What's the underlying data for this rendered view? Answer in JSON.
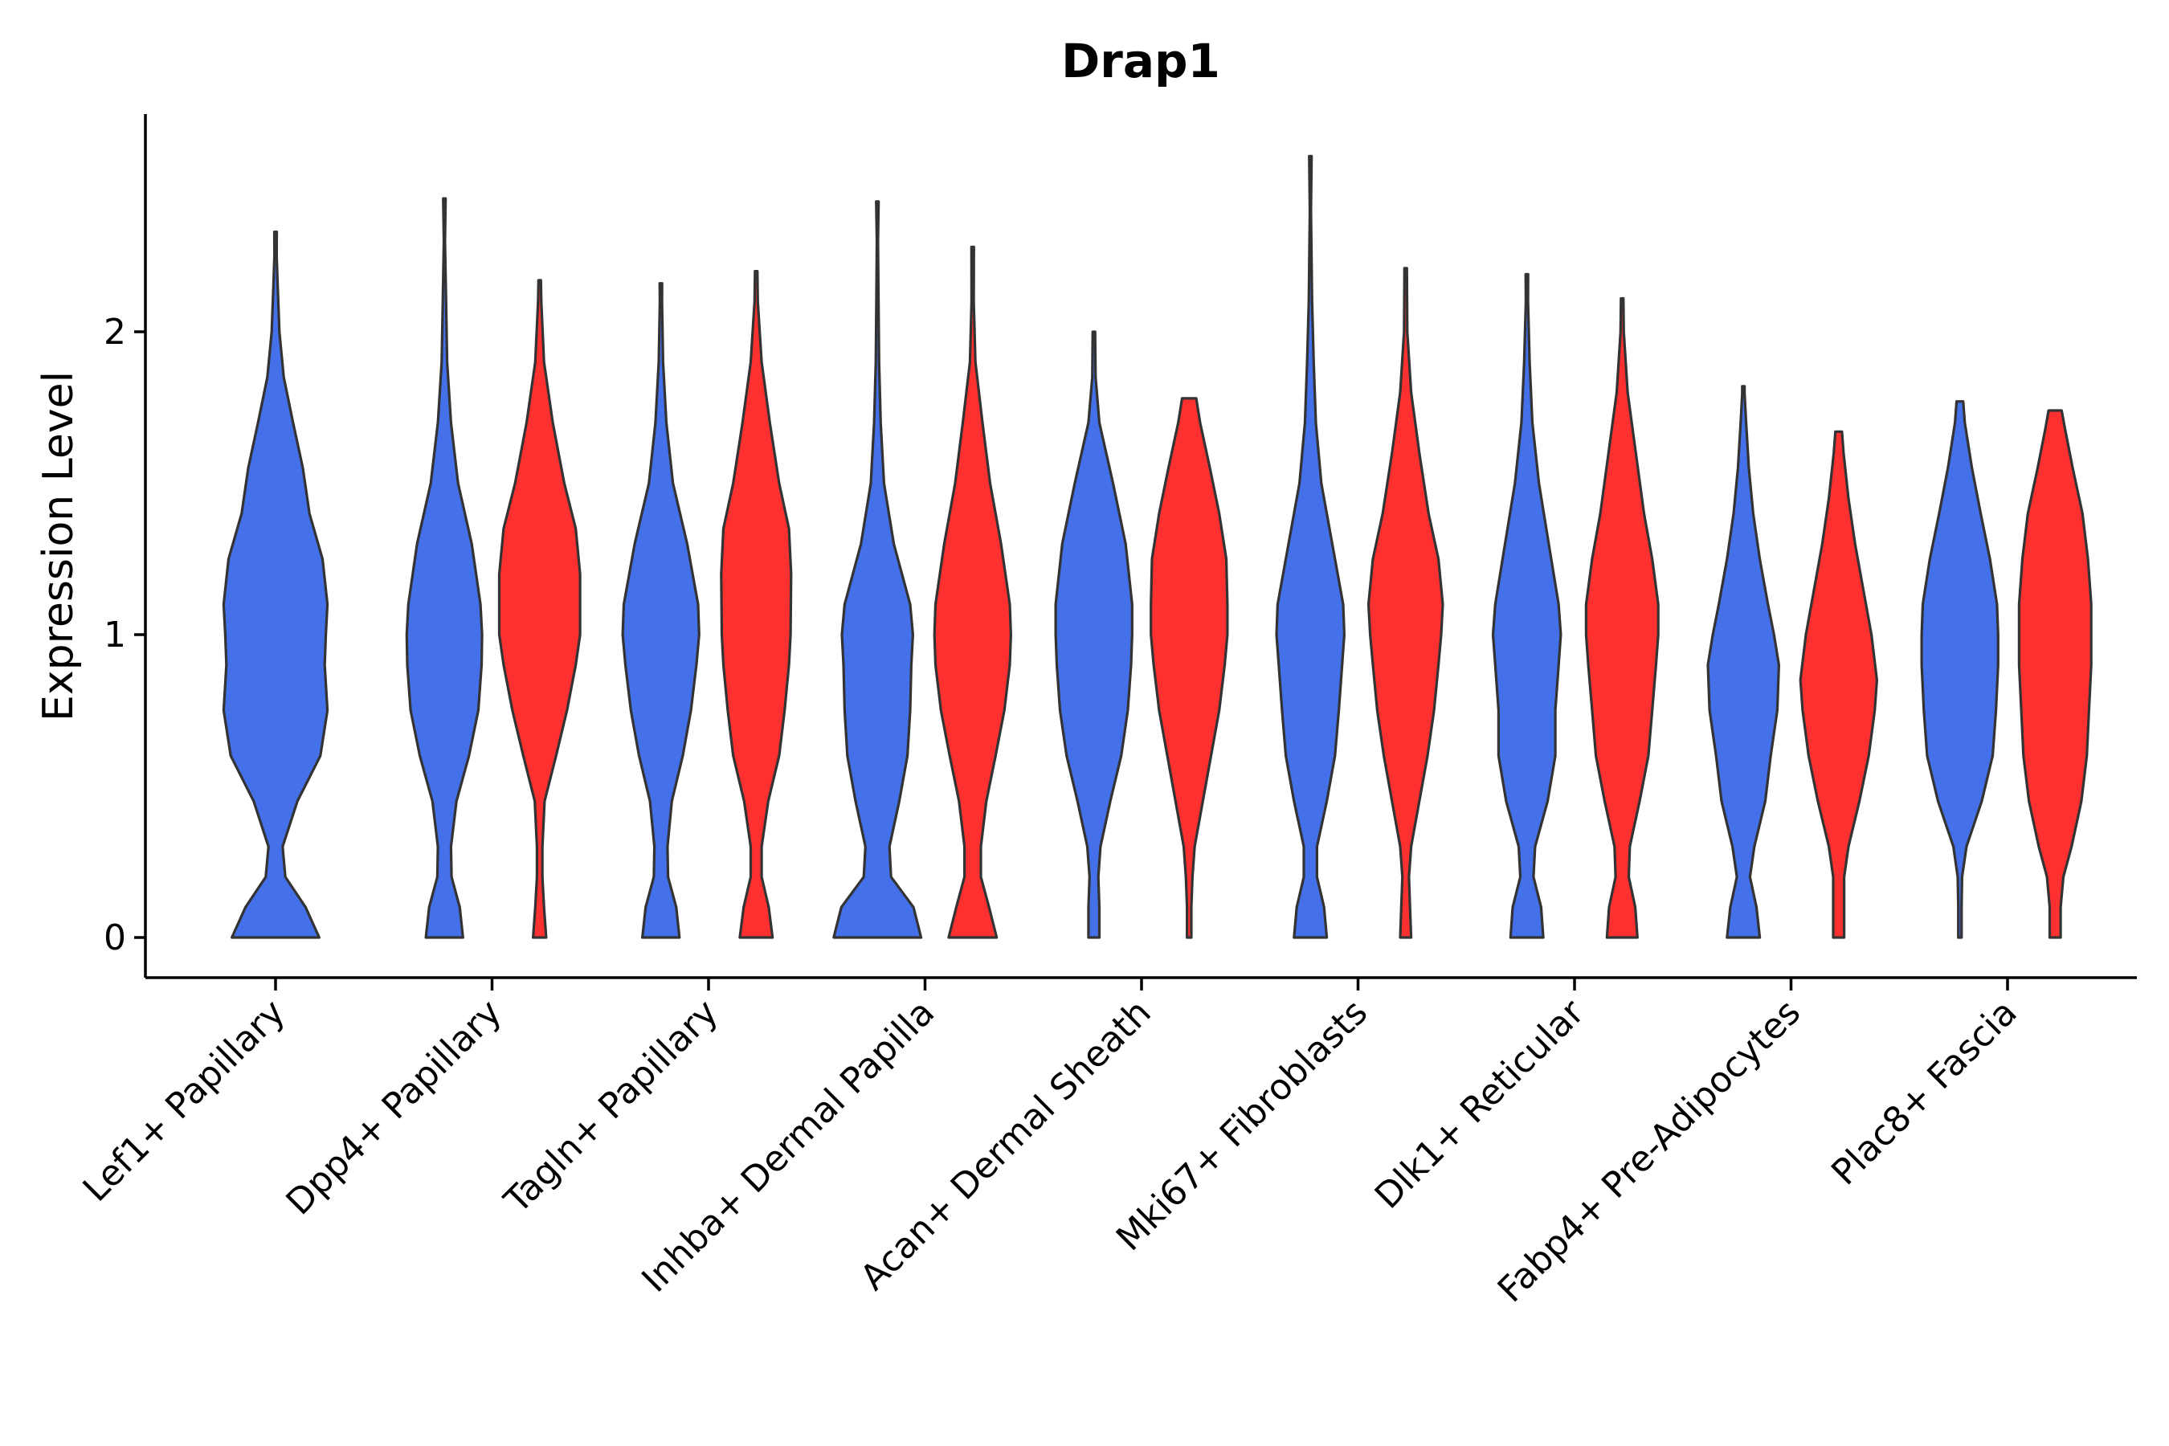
{
  "chart_data": {
    "type": "violin",
    "title": "Drap1",
    "xlabel": "",
    "ylabel": "Expression Level",
    "ylim": [
      -0.13,
      2.7
    ],
    "yticks": [
      0,
      1,
      2
    ],
    "grid": false,
    "legend": "none",
    "colors": {
      "group1": "#4470EA",
      "group2": "#FF3030",
      "outline": "#333333"
    },
    "categories": [
      "Lef1+ Papillary",
      "Dpp4+ Papillary",
      "Tagln+ Papillary",
      "Inhba+ Dermal Papilla",
      "Acan+ Dermal Sheath",
      "Mki67+ Fibroblasts",
      "Dlk1+ Reticular",
      "Fabp4+ Pre-Adipocytes",
      "Plac8+ Fascia"
    ],
    "violins": [
      {
        "group": 1,
        "x": 0,
        "max": 2.33,
        "profile": [
          [
            0,
            0.8
          ],
          [
            0.1,
            0.55
          ],
          [
            0.2,
            0.18
          ],
          [
            0.3,
            0.13
          ],
          [
            0.45,
            0.4
          ],
          [
            0.6,
            0.82
          ],
          [
            0.75,
            0.95
          ],
          [
            0.9,
            0.9
          ],
          [
            1.0,
            0.92
          ],
          [
            1.1,
            0.95
          ],
          [
            1.25,
            0.86
          ],
          [
            1.4,
            0.62
          ],
          [
            1.55,
            0.5
          ],
          [
            1.7,
            0.32
          ],
          [
            1.85,
            0.15
          ],
          [
            2.0,
            0.07
          ],
          [
            2.15,
            0.04
          ],
          [
            2.25,
            0.02
          ]
        ]
      },
      {
        "group": 1,
        "x": 0.78,
        "max": 2.44,
        "profile": [
          [
            0,
            0.34
          ],
          [
            0.1,
            0.28
          ],
          [
            0.2,
            0.13
          ],
          [
            0.3,
            0.12
          ],
          [
            0.45,
            0.22
          ],
          [
            0.6,
            0.45
          ],
          [
            0.75,
            0.62
          ],
          [
            0.9,
            0.68
          ],
          [
            1.0,
            0.69
          ],
          [
            1.1,
            0.66
          ],
          [
            1.3,
            0.5
          ],
          [
            1.5,
            0.25
          ],
          [
            1.7,
            0.12
          ],
          [
            1.9,
            0.05
          ],
          [
            2.1,
            0.03
          ],
          [
            2.3,
            0.01
          ]
        ]
      },
      {
        "group": 2,
        "x": 1.22,
        "max": 2.17,
        "profile": [
          [
            0,
            0.12
          ],
          [
            0.1,
            0.08
          ],
          [
            0.2,
            0.05
          ],
          [
            0.3,
            0.05
          ],
          [
            0.45,
            0.09
          ],
          [
            0.6,
            0.3
          ],
          [
            0.75,
            0.5
          ],
          [
            0.9,
            0.66
          ],
          [
            1.0,
            0.74
          ],
          [
            1.2,
            0.74
          ],
          [
            1.35,
            0.66
          ],
          [
            1.5,
            0.45
          ],
          [
            1.7,
            0.24
          ],
          [
            1.9,
            0.08
          ],
          [
            2.1,
            0.03
          ]
        ]
      },
      {
        "group": 1,
        "x": 1.78,
        "max": 2.16,
        "profile": [
          [
            0,
            0.34
          ],
          [
            0.1,
            0.28
          ],
          [
            0.2,
            0.13
          ],
          [
            0.3,
            0.12
          ],
          [
            0.45,
            0.2
          ],
          [
            0.6,
            0.4
          ],
          [
            0.75,
            0.55
          ],
          [
            0.9,
            0.65
          ],
          [
            1.0,
            0.7
          ],
          [
            1.1,
            0.68
          ],
          [
            1.3,
            0.48
          ],
          [
            1.5,
            0.22
          ],
          [
            1.7,
            0.1
          ],
          [
            1.9,
            0.04
          ],
          [
            2.1,
            0.02
          ]
        ]
      },
      {
        "group": 2,
        "x": 2.22,
        "max": 2.2,
        "profile": [
          [
            0,
            0.3
          ],
          [
            0.1,
            0.23
          ],
          [
            0.2,
            0.1
          ],
          [
            0.3,
            0.1
          ],
          [
            0.45,
            0.22
          ],
          [
            0.6,
            0.42
          ],
          [
            0.75,
            0.52
          ],
          [
            0.9,
            0.6
          ],
          [
            1.0,
            0.63
          ],
          [
            1.2,
            0.64
          ],
          [
            1.35,
            0.6
          ],
          [
            1.5,
            0.42
          ],
          [
            1.7,
            0.25
          ],
          [
            1.9,
            0.1
          ],
          [
            2.1,
            0.03
          ]
        ]
      },
      {
        "group": 1,
        "x": 2.78,
        "max": 2.43,
        "profile": [
          [
            0,
            0.8
          ],
          [
            0.1,
            0.66
          ],
          [
            0.2,
            0.25
          ],
          [
            0.3,
            0.22
          ],
          [
            0.45,
            0.4
          ],
          [
            0.6,
            0.55
          ],
          [
            0.75,
            0.6
          ],
          [
            0.9,
            0.62
          ],
          [
            1.0,
            0.65
          ],
          [
            1.1,
            0.6
          ],
          [
            1.3,
            0.3
          ],
          [
            1.5,
            0.12
          ],
          [
            1.7,
            0.06
          ],
          [
            1.9,
            0.03
          ],
          [
            2.1,
            0.02
          ],
          [
            2.3,
            0.01
          ]
        ]
      },
      {
        "group": 2,
        "x": 3.22,
        "max": 2.28,
        "profile": [
          [
            0,
            0.44
          ],
          [
            0.1,
            0.3
          ],
          [
            0.2,
            0.15
          ],
          [
            0.3,
            0.15
          ],
          [
            0.45,
            0.25
          ],
          [
            0.6,
            0.42
          ],
          [
            0.75,
            0.58
          ],
          [
            0.9,
            0.68
          ],
          [
            1.0,
            0.7
          ],
          [
            1.1,
            0.68
          ],
          [
            1.3,
            0.52
          ],
          [
            1.5,
            0.32
          ],
          [
            1.7,
            0.18
          ],
          [
            1.9,
            0.05
          ],
          [
            2.1,
            0.02
          ]
        ]
      },
      {
        "group": 1,
        "x": 3.78,
        "max": 2.0,
        "profile": [
          [
            0,
            0.1
          ],
          [
            0.1,
            0.1
          ],
          [
            0.2,
            0.08
          ],
          [
            0.3,
            0.12
          ],
          [
            0.45,
            0.3
          ],
          [
            0.6,
            0.5
          ],
          [
            0.75,
            0.62
          ],
          [
            0.9,
            0.68
          ],
          [
            1.0,
            0.7
          ],
          [
            1.1,
            0.7
          ],
          [
            1.3,
            0.58
          ],
          [
            1.5,
            0.35
          ],
          [
            1.7,
            0.1
          ],
          [
            1.85,
            0.03
          ]
        ]
      },
      {
        "group": 2,
        "x": 4.22,
        "max": 1.78,
        "profile": [
          [
            0,
            0.04
          ],
          [
            0.1,
            0.04
          ],
          [
            0.2,
            0.06
          ],
          [
            0.3,
            0.1
          ],
          [
            0.45,
            0.25
          ],
          [
            0.6,
            0.4
          ],
          [
            0.75,
            0.55
          ],
          [
            0.9,
            0.65
          ],
          [
            1.0,
            0.7
          ],
          [
            1.1,
            0.7
          ],
          [
            1.25,
            0.68
          ],
          [
            1.4,
            0.55
          ],
          [
            1.55,
            0.38
          ],
          [
            1.7,
            0.2
          ],
          [
            1.78,
            0.13
          ]
        ]
      },
      {
        "group": 1,
        "x": 4.78,
        "max": 2.58,
        "profile": [
          [
            0,
            0.3
          ],
          [
            0.1,
            0.25
          ],
          [
            0.2,
            0.12
          ],
          [
            0.3,
            0.12
          ],
          [
            0.45,
            0.3
          ],
          [
            0.6,
            0.45
          ],
          [
            0.75,
            0.52
          ],
          [
            0.9,
            0.58
          ],
          [
            1.0,
            0.62
          ],
          [
            1.1,
            0.6
          ],
          [
            1.3,
            0.4
          ],
          [
            1.5,
            0.2
          ],
          [
            1.7,
            0.1
          ],
          [
            1.9,
            0.06
          ],
          [
            2.1,
            0.03
          ],
          [
            2.4,
            0.01
          ]
        ]
      },
      {
        "group": 2,
        "x": 5.22,
        "max": 2.21,
        "profile": [
          [
            0,
            0.1
          ],
          [
            0.1,
            0.08
          ],
          [
            0.2,
            0.06
          ],
          [
            0.3,
            0.1
          ],
          [
            0.45,
            0.25
          ],
          [
            0.6,
            0.4
          ],
          [
            0.75,
            0.52
          ],
          [
            0.9,
            0.6
          ],
          [
            1.0,
            0.65
          ],
          [
            1.1,
            0.68
          ],
          [
            1.25,
            0.6
          ],
          [
            1.4,
            0.42
          ],
          [
            1.6,
            0.25
          ],
          [
            1.8,
            0.1
          ],
          [
            2.0,
            0.03
          ]
        ]
      },
      {
        "group": 1,
        "x": 5.78,
        "max": 2.19,
        "profile": [
          [
            0,
            0.3
          ],
          [
            0.1,
            0.26
          ],
          [
            0.2,
            0.12
          ],
          [
            0.3,
            0.15
          ],
          [
            0.45,
            0.38
          ],
          [
            0.6,
            0.52
          ],
          [
            0.75,
            0.52
          ],
          [
            0.9,
            0.58
          ],
          [
            1.0,
            0.62
          ],
          [
            1.1,
            0.58
          ],
          [
            1.3,
            0.4
          ],
          [
            1.5,
            0.22
          ],
          [
            1.7,
            0.1
          ],
          [
            1.9,
            0.05
          ],
          [
            2.1,
            0.02
          ]
        ]
      },
      {
        "group": 2,
        "x": 6.22,
        "max": 2.11,
        "profile": [
          [
            0,
            0.28
          ],
          [
            0.1,
            0.24
          ],
          [
            0.2,
            0.12
          ],
          [
            0.3,
            0.14
          ],
          [
            0.45,
            0.32
          ],
          [
            0.6,
            0.48
          ],
          [
            0.75,
            0.55
          ],
          [
            0.9,
            0.62
          ],
          [
            1.0,
            0.66
          ],
          [
            1.1,
            0.66
          ],
          [
            1.25,
            0.55
          ],
          [
            1.4,
            0.4
          ],
          [
            1.6,
            0.25
          ],
          [
            1.8,
            0.1
          ],
          [
            2.0,
            0.03
          ]
        ]
      },
      {
        "group": 1,
        "x": 6.78,
        "max": 1.82,
        "profile": [
          [
            0,
            0.3
          ],
          [
            0.1,
            0.24
          ],
          [
            0.2,
            0.12
          ],
          [
            0.3,
            0.2
          ],
          [
            0.45,
            0.4
          ],
          [
            0.6,
            0.5
          ],
          [
            0.75,
            0.62
          ],
          [
            0.9,
            0.65
          ],
          [
            1.0,
            0.56
          ],
          [
            1.1,
            0.45
          ],
          [
            1.25,
            0.3
          ],
          [
            1.4,
            0.18
          ],
          [
            1.55,
            0.1
          ],
          [
            1.7,
            0.05
          ],
          [
            1.8,
            0.02
          ]
        ]
      },
      {
        "group": 2,
        "x": 7.22,
        "max": 1.67,
        "profile": [
          [
            0,
            0.1
          ],
          [
            0.1,
            0.1
          ],
          [
            0.2,
            0.1
          ],
          [
            0.3,
            0.18
          ],
          [
            0.45,
            0.38
          ],
          [
            0.6,
            0.55
          ],
          [
            0.75,
            0.66
          ],
          [
            0.85,
            0.7
          ],
          [
            1.0,
            0.6
          ],
          [
            1.15,
            0.45
          ],
          [
            1.3,
            0.3
          ],
          [
            1.45,
            0.18
          ],
          [
            1.6,
            0.09
          ],
          [
            1.67,
            0.06
          ]
        ]
      },
      {
        "group": 1,
        "x": 7.78,
        "max": 1.77,
        "profile": [
          [
            0,
            0.03
          ],
          [
            0.1,
            0.03
          ],
          [
            0.2,
            0.04
          ],
          [
            0.3,
            0.12
          ],
          [
            0.45,
            0.4
          ],
          [
            0.6,
            0.6
          ],
          [
            0.75,
            0.66
          ],
          [
            0.9,
            0.7
          ],
          [
            1.0,
            0.7
          ],
          [
            1.1,
            0.68
          ],
          [
            1.25,
            0.55
          ],
          [
            1.4,
            0.38
          ],
          [
            1.55,
            0.22
          ],
          [
            1.7,
            0.09
          ],
          [
            1.77,
            0.06
          ]
        ]
      },
      {
        "group": 2,
        "x": 8.22,
        "max": 1.74,
        "profile": [
          [
            0,
            0.1
          ],
          [
            0.1,
            0.1
          ],
          [
            0.2,
            0.15
          ],
          [
            0.3,
            0.3
          ],
          [
            0.45,
            0.48
          ],
          [
            0.6,
            0.58
          ],
          [
            0.75,
            0.62
          ],
          [
            0.9,
            0.66
          ],
          [
            1.0,
            0.66
          ],
          [
            1.1,
            0.66
          ],
          [
            1.25,
            0.6
          ],
          [
            1.4,
            0.5
          ],
          [
            1.55,
            0.32
          ],
          [
            1.68,
            0.18
          ],
          [
            1.74,
            0.12
          ]
        ]
      }
    ]
  }
}
